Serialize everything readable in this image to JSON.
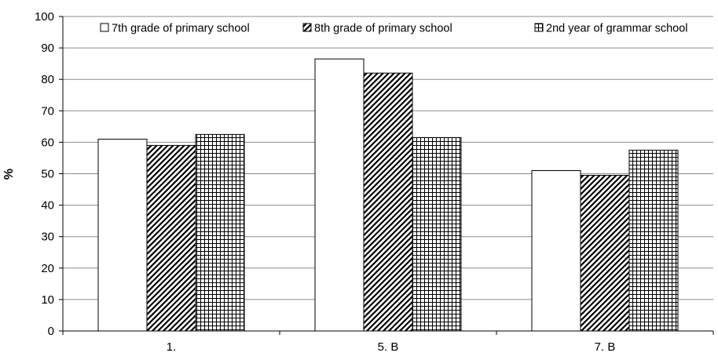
{
  "chart_data": {
    "type": "bar",
    "title": "",
    "xlabel": "",
    "ylabel": "%",
    "ylim": [
      0,
      100
    ],
    "yticks": [
      0,
      10,
      20,
      30,
      40,
      50,
      60,
      70,
      80,
      90,
      100
    ],
    "grid": true,
    "legend_position": "top",
    "categories": [
      "1.",
      "5. B",
      "7. B"
    ],
    "series": [
      {
        "name": "7th grade of primary school",
        "values": [
          61,
          86.5,
          51
        ],
        "pattern": "white"
      },
      {
        "name": "8th grade of primary school",
        "values": [
          59,
          82,
          49.5
        ],
        "pattern": "diagonal-hatch"
      },
      {
        "name": "2nd year of grammar school",
        "values": [
          62.5,
          61.5,
          57.5
        ],
        "pattern": "grid-hatch"
      }
    ],
    "colors": {
      "stroke": "#000000",
      "fill": "#ffffff",
      "grid": "#8c8c8c"
    }
  }
}
